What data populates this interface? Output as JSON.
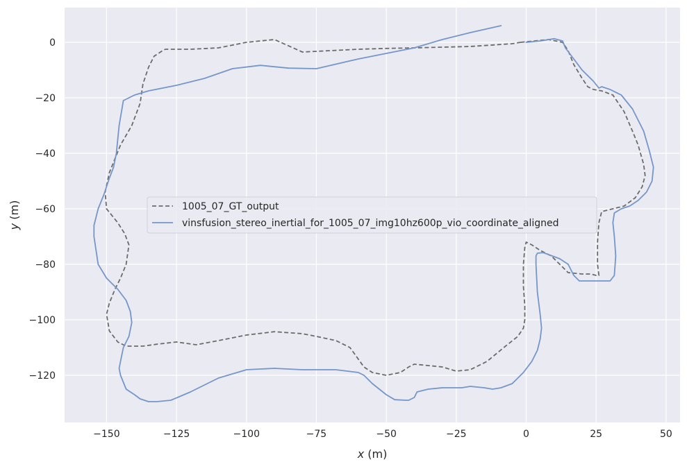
{
  "chart_data": {
    "type": "line",
    "title": "",
    "xlabel_var": "x",
    "xlabel_unit": " (m)",
    "ylabel_var": "y",
    "ylabel_unit": " (m)",
    "xlim": [
      -165,
      55
    ],
    "ylim": [
      -137,
      12.5
    ],
    "xticks": [
      -150,
      -125,
      -100,
      -75,
      -50,
      -25,
      0,
      25,
      50
    ],
    "xtick_labels": [
      "−150",
      "−125",
      "−100",
      "−75",
      "−50",
      "−25",
      "0",
      "25",
      "50"
    ],
    "yticks": [
      0,
      -20,
      -40,
      -60,
      -80,
      -100,
      -120
    ],
    "ytick_labels": [
      "0",
      "−20",
      "−40",
      "−60",
      "−80",
      "−100",
      "−120"
    ],
    "grid": true,
    "legend_position": "center",
    "background": "#eaeaf2",
    "series": [
      {
        "name": "1005_07_GT_output",
        "color": "#6b6b6b",
        "dash": "dashed",
        "x": [
          -2,
          8,
          13,
          15,
          17,
          20,
          22,
          24,
          27,
          31,
          35,
          38,
          40,
          42,
          42.5,
          41.5,
          39,
          35,
          31,
          27,
          26,
          25.5,
          25.5,
          26,
          25,
          23,
          20,
          15,
          12,
          9,
          5,
          2,
          0,
          -0.5,
          -1,
          -1,
          -0.5,
          -0.5,
          -1,
          -3,
          -8,
          -14,
          -20,
          -25,
          -30,
          -35,
          -40,
          -42,
          -45,
          -50,
          -55,
          -58,
          -63,
          -68,
          -75,
          -80,
          -90,
          -100,
          -110,
          -118,
          -125,
          -132,
          -137,
          -143,
          -146,
          -149,
          -150,
          -149,
          -147,
          -145,
          -143,
          -142,
          -143.5,
          -146,
          -150,
          -150.5,
          -149,
          -145,
          -141,
          -138,
          -137,
          -135,
          -133,
          -130,
          -129,
          -125,
          -120,
          -110,
          -100,
          -90,
          -80,
          -70,
          -60,
          -50,
          -40,
          -20,
          -5,
          -2
        ],
        "y": [
          0,
          1,
          0,
          -3,
          -8,
          -13,
          -16,
          -17,
          -17.5,
          -19,
          -25,
          -32,
          -37,
          -44,
          -48,
          -52,
          -56,
          -59,
          -60,
          -61,
          -65,
          -72,
          -80,
          -84,
          -84,
          -83.5,
          -83.5,
          -83,
          -80,
          -77,
          -75,
          -73,
          -72,
          -74,
          -80,
          -88,
          -95,
          -100,
          -103,
          -106,
          -110,
          -115,
          -118,
          -118.5,
          -117,
          -116.5,
          -116,
          -117,
          -119,
          -120,
          -119,
          -117,
          -110,
          -107.5,
          -106,
          -105,
          -104.3,
          -105.5,
          -107.5,
          -109,
          -108,
          -108.8,
          -109.5,
          -109.5,
          -108,
          -104,
          -98,
          -94,
          -89,
          -85,
          -80,
          -73,
          -69,
          -65,
          -60,
          -54,
          -47,
          -37,
          -30,
          -22,
          -15,
          -9,
          -5,
          -3,
          -2.5,
          -2.5,
          -2.5,
          -2,
          0,
          1,
          -3.5,
          -3,
          -2.5,
          -2.2,
          -2,
          -1.5,
          -0.5,
          0
        ]
      },
      {
        "name": "vinsfusion_stereo_inertial_for_1005_07_img10hz600p_vio_coordinate_aligned",
        "color": "#7496c8",
        "dash": "solid",
        "x": [
          0,
          5,
          10,
          13,
          14,
          17,
          20,
          24,
          26,
          27,
          30,
          34,
          38,
          42,
          44,
          45.5,
          45,
          43,
          40,
          37,
          34,
          31.5,
          31,
          31.5,
          32,
          31.5,
          30,
          27,
          23,
          19,
          17,
          15,
          12,
          8,
          6,
          4,
          3.5,
          3.5,
          4,
          5,
          5.5,
          5,
          4,
          2,
          -1,
          -5,
          -9,
          -12,
          -15,
          -20,
          -23,
          -30,
          -35,
          -39,
          -40,
          -42,
          -43,
          -47,
          -50,
          -55,
          -58,
          -60,
          -68,
          -80,
          -90,
          -100,
          -110,
          -120,
          -127,
          -132,
          -135,
          -138,
          -140,
          -143,
          -145,
          -145.5,
          -145,
          -144,
          -142,
          -141,
          -141.5,
          -143,
          -146,
          -150,
          -153,
          -154.5,
          -154.5,
          -153,
          -151,
          -149,
          -147.5,
          -146.5,
          -146,
          -145.5,
          -144,
          -140,
          -135,
          -125,
          -115,
          -105,
          -95,
          -85,
          -75,
          -60,
          -50,
          -40,
          -30,
          -20,
          -9
        ],
        "y": [
          0,
          0.5,
          1.3,
          0.5,
          -2,
          -6,
          -10,
          -14,
          -16.5,
          -16,
          -17,
          -19,
          -24,
          -32,
          -39,
          -45,
          -50,
          -54,
          -57,
          -59,
          -60,
          -61.5,
          -65,
          -70,
          -77,
          -84,
          -86,
          -86,
          -86,
          -86,
          -84,
          -80,
          -78,
          -76.5,
          -75.8,
          -76,
          -77,
          -80,
          -90,
          -98,
          -103,
          -107,
          -111,
          -115,
          -119,
          -123,
          -124.5,
          -125,
          -124.5,
          -124,
          -124.5,
          -124.5,
          -125,
          -126,
          -128,
          -129,
          -129,
          -128.8,
          -127,
          -123,
          -120,
          -119,
          -118,
          -118,
          -117.5,
          -118,
          -121,
          -126,
          -129,
          -129.5,
          -129.5,
          -128.5,
          -127,
          -125,
          -120,
          -117.5,
          -115,
          -110,
          -106,
          -101,
          -97,
          -93,
          -89,
          -85,
          -80,
          -70,
          -66,
          -60,
          -55,
          -49,
          -45,
          -40,
          -35,
          -30,
          -21,
          -19,
          -17.5,
          -15.5,
          -13,
          -9.5,
          -8.3,
          -9.3,
          -9.5,
          -6,
          -4,
          -2,
          1,
          3.5,
          6
        ]
      }
    ]
  }
}
